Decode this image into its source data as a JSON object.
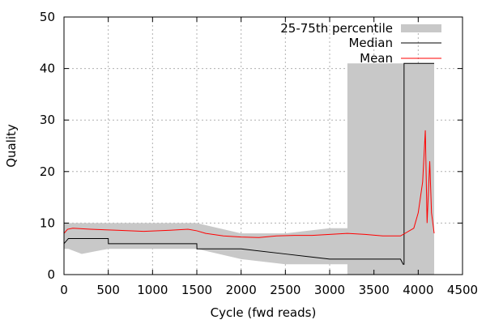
{
  "chart_data": {
    "type": "line",
    "xlabel": "Cycle (fwd reads)",
    "ylabel": "Quality",
    "xlim": [
      0,
      4500
    ],
    "ylim": [
      0,
      50
    ],
    "xticks": [
      0,
      500,
      1000,
      1500,
      2000,
      2500,
      3000,
      3500,
      4000,
      4500
    ],
    "yticks": [
      0,
      10,
      20,
      30,
      40,
      50
    ],
    "grid": true,
    "legend_position": "top-right",
    "legend": [
      "25-75th percentile",
      "Median",
      "Mean"
    ],
    "colors": {
      "band": "#c8c8c8",
      "median": "#000000",
      "mean": "#ff0000",
      "grid": "#b0b0b0"
    },
    "series": [
      {
        "name": "25-75th percentile",
        "style": "band",
        "x": [
          0,
          50,
          200,
          500,
          1000,
          1500,
          2000,
          2500,
          3000,
          3200,
          3200,
          3600,
          3800,
          3840,
          4000,
          4180
        ],
        "lower": [
          5,
          5,
          4,
          5,
          5,
          5,
          3,
          2,
          2,
          2,
          0,
          0,
          0,
          0,
          0,
          0
        ],
        "upper": [
          10,
          10,
          10,
          10,
          10,
          10,
          8,
          8,
          9,
          9,
          41,
          41,
          41,
          41,
          41,
          41
        ]
      },
      {
        "name": "Median",
        "x": [
          0,
          50,
          500,
          501,
          1000,
          1500,
          1501,
          2000,
          2500,
          3000,
          3500,
          3800,
          3830,
          3840,
          3840,
          4180
        ],
        "y": [
          6,
          7,
          7,
          6,
          6,
          6,
          5,
          5,
          4,
          3,
          3,
          3,
          2,
          2,
          41,
          41
        ]
      },
      {
        "name": "Mean",
        "x": [
          0,
          40,
          100,
          300,
          600,
          900,
          1200,
          1400,
          1500,
          1600,
          1800,
          2000,
          2200,
          2400,
          2600,
          2800,
          3000,
          3200,
          3400,
          3600,
          3800,
          3850,
          3950,
          4000,
          4050,
          4080,
          4100,
          4130,
          4150,
          4180
        ],
        "y": [
          8,
          8.8,
          9,
          8.8,
          8.6,
          8.4,
          8.6,
          8.8,
          8.5,
          8,
          7.5,
          7.3,
          7.2,
          7.5,
          7.6,
          7.6,
          7.8,
          8,
          7.8,
          7.5,
          7.5,
          8,
          9,
          12,
          18,
          28,
          10,
          22,
          12,
          8
        ]
      }
    ]
  }
}
